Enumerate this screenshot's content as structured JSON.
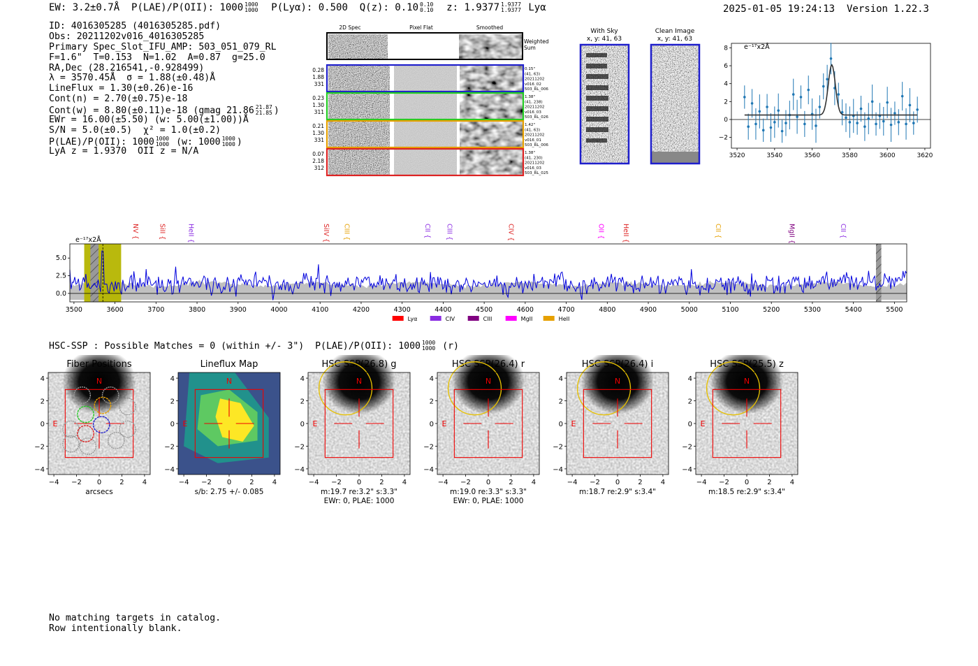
{
  "header": {
    "ew": "EW: 3.2±0.7Å",
    "plae": "P(LAE)/P(OII): 1000",
    "plae_hi": "1000",
    "plae_lo": "1000",
    "plya": "P(Lyα): 0.500",
    "qz": "Q(z): 0.10",
    "qz_hi": "0.10",
    "qz_lo": "0.10",
    "z": "z: 1.9377",
    "z_hi": "1.9377",
    "z_lo": "1.9377",
    "z_line": "Lyα",
    "datetime": "2025-01-05 19:24:13",
    "version": "Version 1.22.3"
  },
  "info": {
    "id": "ID: 4016305285 (4016305285.pdf)",
    "obs": "Obs: 20211202v016_4016305285",
    "primary": "Primary Spec_Slot_IFU_AMP: 503_051_079_RL",
    "fwhm": "F=1.6\"  T=0.153  N=1.02  A=0.87  g=25.0",
    "radec": "RA,Dec (28.216541,-0.928499)",
    "lambda": "λ = 3570.45Å  σ = 1.88(±0.48)Å",
    "lineflux": "LineFlux = 1.30(±0.26)e-16",
    "contn": "Cont(n) = 2.70(±0.75)e-18",
    "contw": "Cont(w) = 8.80(±0.11)e-18 (gmag 21.86",
    "contw_hi": "21.87",
    "contw_lo": "21.85",
    "ewr": "EWr = 16.00(±5.50) (w: 5.00(±1.00))Å",
    "sn": "S/N = 5.0(±0.5)  χ² = 1.0(±0.2)",
    "plae": "P(LAE)/P(OII): 1000",
    "plae_hi": "1000",
    "plae_lo": "1000",
    "plae_w": "(w: 1000",
    "plae_w_hi": "1000",
    "plae_w_lo": "1000",
    "lya": "LyA z = 1.9370  OII z = N/A"
  },
  "cutouts": {
    "col_labels": [
      "2D Spec",
      "Pixel Flat",
      "Smoothed"
    ],
    "weighted_sum": [
      "Weighted",
      "Sum"
    ],
    "rows": [
      {
        "left": [
          "0.28",
          "1.88",
          "331"
        ],
        "right": [
          "0.15\"",
          "(41, 63)",
          "20211202",
          "v016_02",
          "503_RL_006"
        ],
        "color": "#1f1fcc"
      },
      {
        "left": [
          "0.23",
          "1.30",
          "311"
        ],
        "right": [
          "1.38\"",
          "(41, 238)",
          "20211202",
          "v016_03",
          "503_RL_026"
        ],
        "color": "#22cc22"
      },
      {
        "left": [
          "0.21",
          "1.30",
          "331"
        ],
        "right": [
          "1.42\"",
          "(41, 63)",
          "20211202",
          "v016_01",
          "503_RL_006"
        ],
        "color": "#e6a000"
      },
      {
        "left": [
          "0.07",
          "2.18",
          "312"
        ],
        "right": [
          "1.38\"",
          "(41, 230)",
          "20211202",
          "v016_03",
          "503_RL_025"
        ],
        "color": "#dd2222"
      }
    ],
    "with_sky": "With Sky",
    "with_sky_xy": "x, y: 41, 63",
    "clean": "Clean Image",
    "clean_xy": "x, y: 41, 63"
  },
  "chart_data": [
    {
      "type": "line",
      "title": "",
      "ylabel": "e⁻¹⁷x2Å",
      "xlim": [
        3517,
        3623
      ],
      "ylim": [
        -3.2,
        8.5
      ],
      "xticks": [
        3520,
        3540,
        3560,
        3580,
        3600,
        3620
      ],
      "yticks": [
        -2,
        0,
        2,
        4,
        6,
        8
      ],
      "data_points": {
        "x": [
          3524,
          3526,
          3528,
          3530,
          3532,
          3534,
          3536,
          3538,
          3540,
          3542,
          3544,
          3546,
          3548,
          3550,
          3552,
          3554,
          3556,
          3558,
          3560,
          3562,
          3564,
          3566,
          3568,
          3570,
          3572,
          3574,
          3576,
          3578,
          3580,
          3582,
          3584,
          3586,
          3588,
          3590,
          3592,
          3594,
          3596,
          3598,
          3600,
          3602,
          3604,
          3606,
          3608,
          3610,
          3612,
          3614,
          3616
        ],
        "y": [
          2.5,
          -0.8,
          1.8,
          -0.5,
          0.9,
          -1.2,
          1.4,
          -0.9,
          -0.3,
          1.0,
          -1.3,
          -0.4,
          0.5,
          2.8,
          0.3,
          2.5,
          -0.5,
          3.3,
          0.6,
          -0.7,
          1.4,
          3.7,
          4.5,
          6.8,
          3.5,
          2.8,
          0.8,
          0.2,
          -0.3,
          0.4,
          -0.4,
          1.2,
          -0.8,
          0.1,
          2.0,
          -0.5,
          0.4,
          -0.2,
          1.9,
          -0.6,
          0.7,
          -0.3,
          2.6,
          -0.5,
          1.6,
          -0.4,
          1.1
        ]
      },
      "model": {
        "baseline": 0.5,
        "center": 3570.45,
        "sigma": 1.88,
        "amplitude": 5.6
      }
    },
    {
      "type": "line",
      "title": "",
      "ylabel": "e⁻¹⁷x2Å",
      "xlim": [
        3490,
        5530
      ],
      "ylim": [
        -1.2,
        7.0
      ],
      "xticks": [
        3500,
        3600,
        3700,
        3800,
        3900,
        4000,
        4100,
        4200,
        4300,
        4400,
        4500,
        4600,
        4700,
        4800,
        4900,
        5000,
        5100,
        5200,
        5300,
        5400,
        5500
      ],
      "yticks": [
        0.0,
        2.5,
        5.0
      ],
      "line_markers": [
        {
          "name": "NV",
          "wavelength": 3640,
          "color": "#dd2222"
        },
        {
          "name": "SiII",
          "wavelength": 3705,
          "color": "#dd2222"
        },
        {
          "name": "HeII",
          "wavelength": 3775,
          "color": "#8a2be2"
        },
        {
          "name": "SiIV",
          "wavelength": 4105,
          "color": "#dd2222"
        },
        {
          "name": "CIII",
          "wavelength": 4155,
          "color": "#e6a000"
        },
        {
          "name": "CII",
          "wavelength": 4352,
          "color": "#8a2be2"
        },
        {
          "name": "CIII",
          "wavelength": 4405,
          "color": "#8a2be2"
        },
        {
          "name": "CIV",
          "wavelength": 4555,
          "color": "#dd2222"
        },
        {
          "name": "OII",
          "wavelength": 4775,
          "color": "#ff00ff"
        },
        {
          "name": "HeII",
          "wavelength": 4835,
          "color": "#dd2222"
        },
        {
          "name": "CII",
          "wavelength": 5060,
          "color": "#e6a000"
        },
        {
          "name": "MgII",
          "wavelength": 5240,
          "color": "#800080"
        },
        {
          "name": "CII",
          "wavelength": 5365,
          "color": "#8a2be2"
        }
      ],
      "highlight": {
        "x_from": 3525,
        "x_to": 3615,
        "color": "#b5b500"
      },
      "masked": [
        {
          "x_from": 3540,
          "x_to": 3560
        },
        {
          "x_from": 5455,
          "x_to": 5468
        }
      ],
      "emission_line": 3570.45,
      "legend": [
        {
          "label": "Lyα",
          "color": "#ff0000"
        },
        {
          "label": "CIV",
          "color": "#8a2be2"
        },
        {
          "label": "CIII",
          "color": "#800080"
        },
        {
          "label": "MgII",
          "color": "#ff00ff"
        },
        {
          "label": "HeII",
          "color": "#e6a000"
        }
      ]
    }
  ],
  "hsc": {
    "title": "HSC-SSP : Possible Matches = 0 (within +/- 3\")  P(LAE)/P(OII): 1000",
    "title_hi": "1000",
    "title_lo": "1000",
    "title_suffix": "(r)",
    "ticks": [
      "−4",
      "−2",
      "0",
      "2",
      "4"
    ],
    "north": "N",
    "east": "E",
    "panels": [
      {
        "title": "Fiber Positions",
        "caption1": "arcsecs",
        "caption2": ""
      },
      {
        "title": "Lineflux Map",
        "caption1": "s/b: 2.75 +/- 0.085",
        "caption2": ""
      },
      {
        "title": "HSC SSP(26.8) g",
        "caption1": "m:19.7  re:3.2\"  s:3.3\"",
        "caption2": "EWr: 0, PLAE: 1000"
      },
      {
        "title": "HSC SSP(26.4) r",
        "caption1": "m:19.0  re:3.3\"  s:3.3\"",
        "caption2": "EWr: 0, PLAE: 1000"
      },
      {
        "title": "HSC SSP(26.4) i",
        "caption1": "m:18.7  re:2.9\"  s:3.4\"",
        "caption2": ""
      },
      {
        "title": "HSC SSP(25.5) z",
        "caption1": "m:18.5  re:2.9\"  s:3.4\"",
        "caption2": ""
      }
    ]
  },
  "footer": {
    "line1": "No matching targets in catalog.",
    "line2": "Row intentionally blank."
  }
}
